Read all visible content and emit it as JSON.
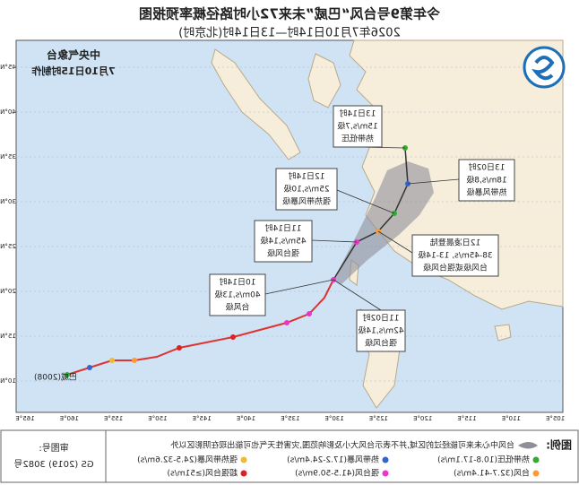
{
  "header": {
    "title": "今年第9号台风“巴威”未来72小时路径概率预报图",
    "subtitle": "2026年7月10日14时—13日14时(北京时)"
  },
  "issuer": {
    "name": "中央气象台",
    "time": "7月10日15时制作"
  },
  "axes": {
    "longitudes": [
      "165°E",
      "160°E",
      "155°E",
      "150°E",
      "145°E",
      "140°E",
      "135°E",
      "130°E",
      "125°E",
      "120°E",
      "115°E",
      "110°E",
      "105°E"
    ],
    "latitudes": [
      "45°N",
      "40°N",
      "35°N",
      "30°N",
      "25°N",
      "20°N",
      "15°N",
      "10°N"
    ]
  },
  "storm_label": "巴威(2008)",
  "callouts": [
    {
      "lines": [
        "13日14时",
        "15m/s,7级",
        "热带低压"
      ]
    },
    {
      "lines": [
        "13日02时",
        "18m/s,8级",
        "热带风暴级"
      ]
    },
    {
      "lines": [
        "12日14时",
        "25m/s,10级",
        "强热带风暴级"
      ]
    },
    {
      "lines": [
        "12日凌晨登陆",
        "38-45m/s, 13-14级",
        "台风级或强台风级"
      ]
    },
    {
      "lines": [
        "11日14时",
        "45m/s,14级",
        "强台风级"
      ]
    },
    {
      "lines": [
        "10日14时",
        "40m/s,13级",
        "台风级"
      ]
    },
    {
      "lines": [
        "11日02时",
        "42m/s,14级",
        "强台风级"
      ]
    }
  ],
  "legend": {
    "title": "图例:",
    "cone_note": "台风中心未来可能经过的区域,并不表示台风大小及影响范围,灾害性天气也可能出现在阴影区以外",
    "items": [
      "热带低压(10.8-17.1m/s)",
      "热带风暴(17.2-24.4m/s)",
      "强热带风暴(24.5-32.6m/s)",
      "台风(32.7-41.4m/s)",
      "强台风(41.5-50.9m/s)",
      "超强台风(≥51m/s)"
    ]
  },
  "approval": {
    "label": "审图号:",
    "number": "GS (2019) 3082号"
  }
}
